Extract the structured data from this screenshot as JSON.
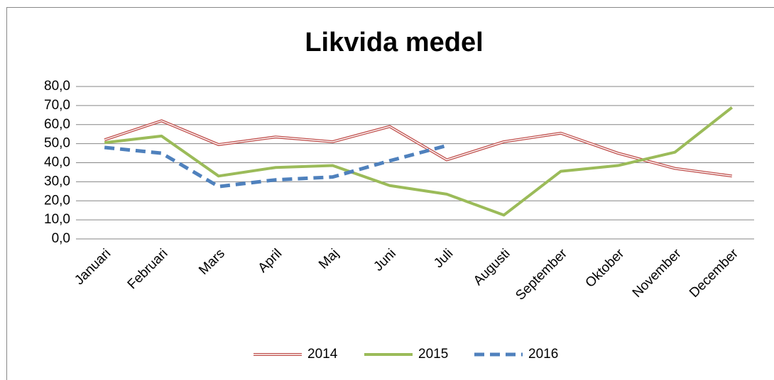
{
  "chart_data": {
    "type": "line",
    "title": "Likvida medel",
    "categories": [
      "Januari",
      "Februari",
      "Mars",
      "April",
      "Maj",
      "Juni",
      "Juli",
      "Augusti",
      "September",
      "Oktober",
      "November",
      "December"
    ],
    "series": [
      {
        "name": "2014",
        "color": "#c0504d",
        "style": "double",
        "values": [
          52,
          62,
          49.5,
          53.5,
          51,
          59,
          41.5,
          51,
          55.5,
          45,
          37,
          33
        ]
      },
      {
        "name": "2015",
        "color": "#9bbb59",
        "style": "solid",
        "values": [
          50.5,
          54,
          33,
          37.5,
          38.5,
          28,
          23.5,
          12.5,
          35.5,
          38.5,
          45.5,
          69
        ]
      },
      {
        "name": "2016",
        "color": "#4f81bd",
        "style": "dashed",
        "values": [
          48,
          45,
          27.5,
          31,
          32.5,
          41,
          49,
          null,
          null,
          null,
          null,
          null
        ]
      }
    ],
    "ylim": [
      0,
      80
    ],
    "yticks": [
      {
        "value": 0,
        "label": "0,0"
      },
      {
        "value": 10,
        "label": "10,0"
      },
      {
        "value": 20,
        "label": "20,0"
      },
      {
        "value": 30,
        "label": "30,0"
      },
      {
        "value": 40,
        "label": "40,0"
      },
      {
        "value": 50,
        "label": "50,0"
      },
      {
        "value": 60,
        "label": "60,0"
      },
      {
        "value": 70,
        "label": "70,0"
      },
      {
        "value": 80,
        "label": "80,0"
      }
    ],
    "grid": true,
    "legend": "bottom"
  }
}
